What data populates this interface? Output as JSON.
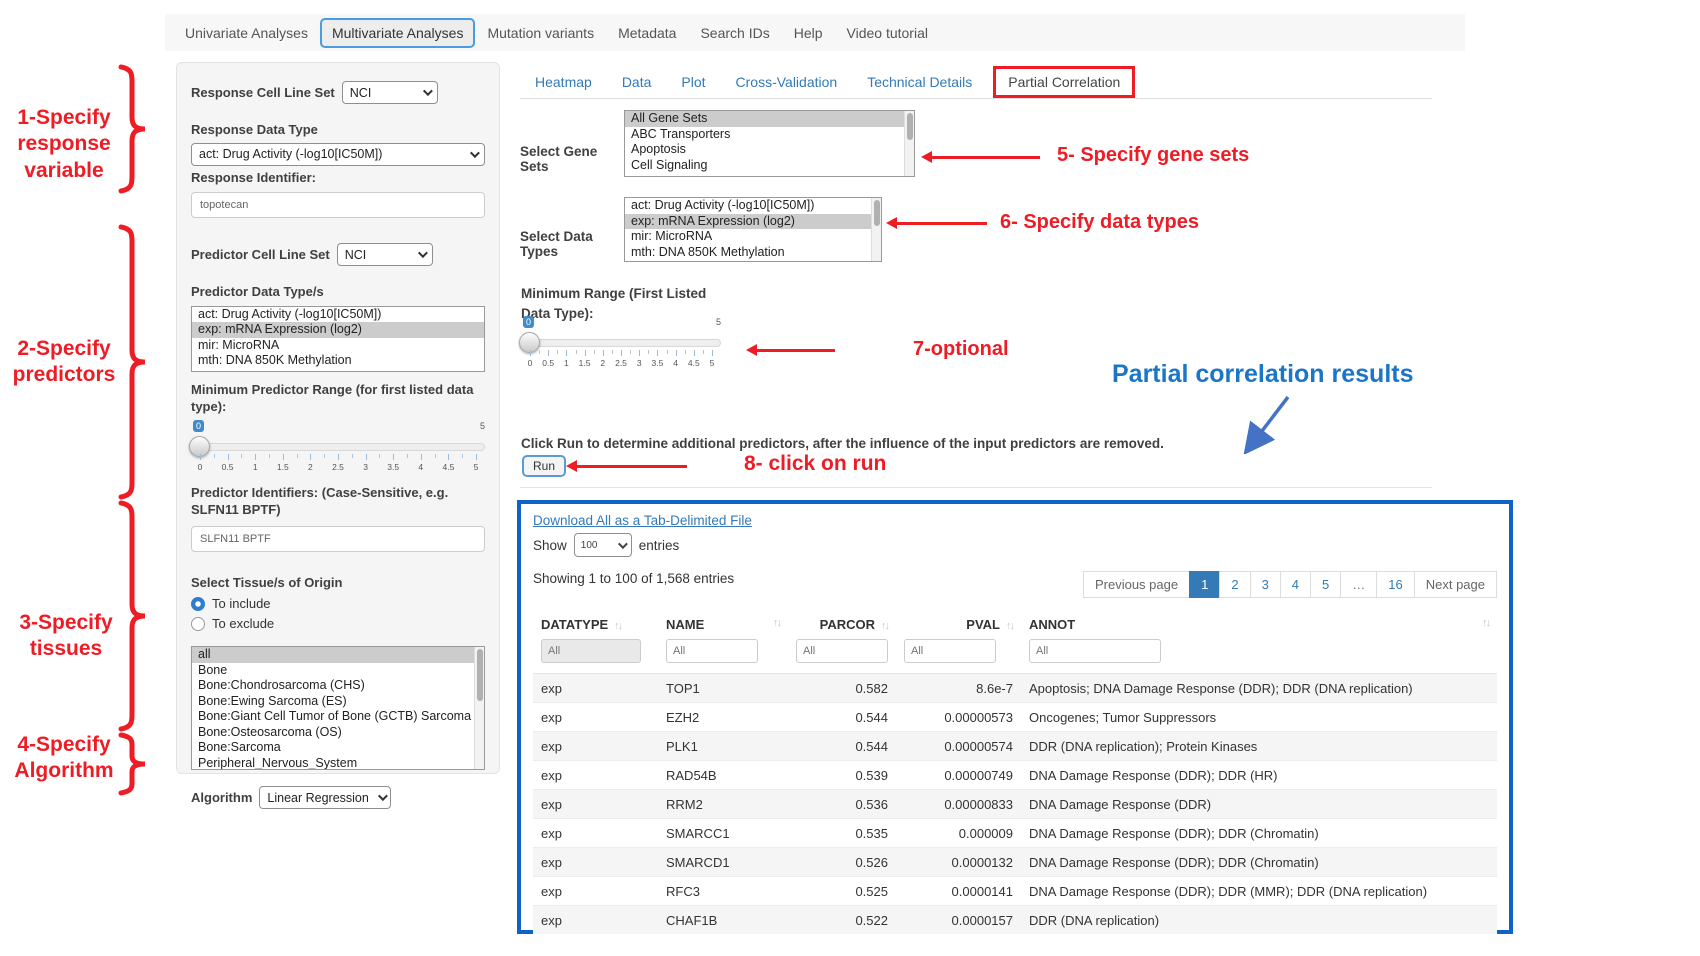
{
  "nav": {
    "tabs": [
      "Univariate Analyses",
      "Multivariate Analyses",
      "Mutation variants",
      "Metadata",
      "Search IDs",
      "Help",
      "Video tutorial"
    ],
    "active_tab": "Multivariate Analyses"
  },
  "annotations": {
    "step1": "1-Specify response variable",
    "step2": "2-Specify predictors",
    "step3": "3-Specify tissues",
    "step4": "4-Specify Algorithm",
    "step5": "5- Specify gene sets",
    "step6": "6- Specify data types",
    "step7": "7-optional",
    "step8": "8- click on run",
    "results_label": "Partial correlation results",
    "red_color": "#ee1c25",
    "blue_color": "#1b76c8"
  },
  "sidebar": {
    "response_cell_line_set_label": "Response Cell Line Set",
    "response_cell_line_set_value": "NCI",
    "response_data_type_label": "Response Data Type",
    "response_data_type_value": "act: Drug Activity (-log10[IC50M])",
    "response_identifier_label": "Response Identifier:",
    "response_identifier_value": "topotecan",
    "predictor_cell_line_set_label": "Predictor Cell Line Set",
    "predictor_cell_line_set_value": "NCI",
    "predictor_data_types_label": "Predictor Data Type/s",
    "predictor_data_types_options": [
      "act: Drug Activity (-log10[IC50M])",
      "exp: mRNA Expression (log2)",
      "mir: MicroRNA",
      "mth: DNA 850K Methylation"
    ],
    "predictor_data_types_selected": "exp: mRNA Expression (log2)",
    "min_predictor_range_label": "Minimum Predictor Range (for first listed data type):",
    "slider": {
      "value": "0",
      "max": "5",
      "ticks": [
        "0",
        "0.5",
        "1",
        "1.5",
        "2",
        "2.5",
        "3",
        "3.5",
        "4",
        "4.5",
        "5"
      ]
    },
    "predictor_identifiers_label": "Predictor Identifiers: (Case-Sensitive, e.g. SLFN11 BPTF)",
    "predictor_identifiers_value": "SLFN11 BPTF",
    "tissue_label": "Select Tissue/s of Origin",
    "tissue_include_label": "To include",
    "tissue_exclude_label": "To exclude",
    "tissue_mode_selected": "To include",
    "tissue_options": [
      "all",
      "Bone",
      "Bone:Chondrosarcoma (CHS)",
      "Bone:Ewing Sarcoma (ES)",
      "Bone:Giant Cell Tumor of Bone (GCTB) Sarcoma",
      "Bone:Osteosarcoma (OS)",
      "Bone:Sarcoma",
      "Peripheral_Nervous_System"
    ],
    "tissue_selected": "all",
    "algorithm_label": "Algorithm",
    "algorithm_value": "Linear Regression"
  },
  "main": {
    "tabs": [
      "Heatmap",
      "Data",
      "Plot",
      "Cross-Validation",
      "Technical Details",
      "Partial Correlation"
    ],
    "active_tab": "Partial Correlation",
    "gene_sets_label": "Select Gene Sets",
    "gene_sets_options": [
      "All Gene Sets",
      "ABC Transporters",
      "Apoptosis",
      "Cell Signaling"
    ],
    "gene_sets_selected": "All Gene Sets",
    "data_types_label": "Select Data Types",
    "data_types_options": [
      "act: Drug Activity (-log10[IC50M])",
      "exp: mRNA Expression (log2)",
      "mir: MicroRNA",
      "mth: DNA 850K Methylation"
    ],
    "data_types_selected": "exp: mRNA Expression (log2)",
    "min_range_label": "Minimum Range (First Listed Data Type):",
    "slider": {
      "value": "0",
      "max": "5",
      "ticks": [
        "0",
        "0.5",
        "1",
        "1.5",
        "2",
        "2.5",
        "3",
        "3.5",
        "4",
        "4.5",
        "5"
      ]
    },
    "run_instruction": "Click Run to determine additional predictors, after the influence of the input predictors are removed.",
    "run_button": "Run"
  },
  "results": {
    "download_link": "Download All as a Tab-Delimited File",
    "show_label": "Show",
    "page_size": "100",
    "entries_label": "entries",
    "showing_text": "Showing 1 to 100 of 1,568 entries",
    "pagination": [
      "Previous page",
      "1",
      "2",
      "3",
      "4",
      "5",
      "…",
      "16",
      "Next page"
    ],
    "active_page": "1",
    "table": {
      "columns": [
        "DATATYPE",
        "NAME",
        "PARCOR",
        "PVAL",
        "ANNOT"
      ],
      "filter_placeholder": "All",
      "rows": [
        [
          "exp",
          "TOP1",
          "0.582",
          "8.6e-7",
          "Apoptosis; DNA Damage Response (DDR); DDR (DNA replication)"
        ],
        [
          "exp",
          "EZH2",
          "0.544",
          "0.00000573",
          "Oncogenes; Tumor Suppressors"
        ],
        [
          "exp",
          "PLK1",
          "0.544",
          "0.00000574",
          "DDR (DNA replication); Protein Kinases"
        ],
        [
          "exp",
          "RAD54B",
          "0.539",
          "0.00000749",
          "DNA Damage Response (DDR); DDR (HR)"
        ],
        [
          "exp",
          "RRM2",
          "0.536",
          "0.00000833",
          "DNA Damage Response (DDR)"
        ],
        [
          "exp",
          "SMARCC1",
          "0.535",
          "0.000009",
          "DNA Damage Response (DDR); DDR (Chromatin)"
        ],
        [
          "exp",
          "SMARCD1",
          "0.526",
          "0.0000132",
          "DNA Damage Response (DDR); DDR (Chromatin)"
        ],
        [
          "exp",
          "RFC3",
          "0.525",
          "0.0000141",
          "DNA Damage Response (DDR); DDR (MMR); DDR (DNA replication)"
        ],
        [
          "exp",
          "CHAF1B",
          "0.522",
          "0.0000157",
          "DDR (DNA replication)"
        ]
      ]
    }
  }
}
